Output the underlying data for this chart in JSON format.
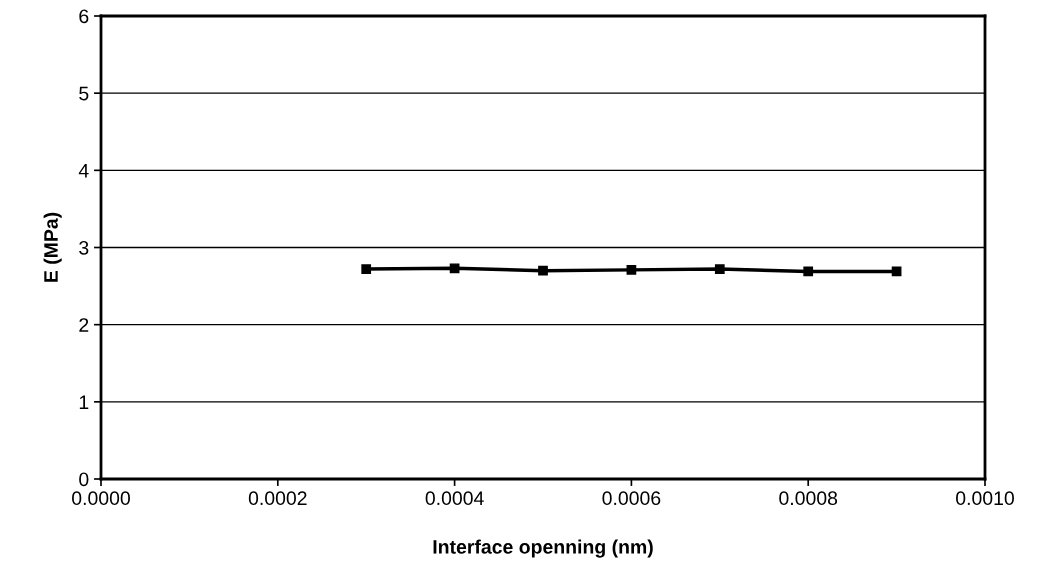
{
  "chart_data": {
    "type": "line",
    "xlabel": "Interface openning (nm)",
    "ylabel": "E (MPa)",
    "x": [
      0.0003,
      0.0004,
      0.0005,
      0.0006,
      0.0007,
      0.0008,
      0.0009
    ],
    "series": [
      {
        "color": "#000000",
        "values": [
          2.72,
          2.73,
          2.7,
          2.71,
          2.72,
          2.69,
          2.69
        ]
      }
    ],
    "xlim": [
      0,
      0.001
    ],
    "xticks": [
      {
        "value": 0,
        "label": "0.0000"
      },
      {
        "value": 0.0002,
        "label": "0.0002"
      },
      {
        "value": 0.0004,
        "label": "0.0004"
      },
      {
        "value": 0.0006,
        "label": "0.0006"
      },
      {
        "value": 0.0008,
        "label": "0.0008"
      },
      {
        "value": 0.001,
        "label": "0.0010"
      }
    ],
    "ylim": [
      0,
      6
    ],
    "yticks": [
      0,
      1,
      2,
      3,
      4,
      5,
      6
    ],
    "grid": "y",
    "marker": "square",
    "line_style": "solid"
  }
}
